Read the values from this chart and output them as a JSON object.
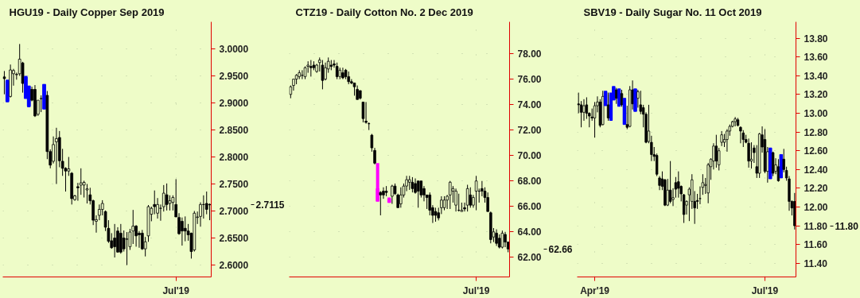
{
  "chart_data": [
    {
      "type": "candlestick",
      "title": "HGU19 - Daily Copper Sep 2019",
      "categories": [
        null,
        null,
        null,
        null,
        null,
        null,
        null,
        null,
        null,
        null,
        null,
        null,
        null,
        null,
        null,
        null,
        null,
        null,
        null,
        null,
        null,
        null,
        null,
        null,
        null,
        null,
        null,
        null,
        null,
        null,
        null,
        null,
        null,
        null,
        null,
        null,
        null,
        null,
        null,
        null,
        null,
        null,
        null,
        null,
        null,
        null,
        null,
        null,
        null,
        null,
        null,
        null,
        null,
        null,
        null,
        null,
        "Jul'19",
        null,
        null,
        null,
        null,
        null,
        null,
        null,
        null,
        null,
        null,
        null
      ],
      "ohlc": [
        [
          2.948,
          2.959,
          2.916,
          2.945
        ],
        [
          2.941,
          2.943,
          2.901,
          2.903
        ],
        [
          2.912,
          2.971,
          2.91,
          2.961
        ],
        [
          2.954,
          2.963,
          2.932,
          2.96
        ],
        [
          2.952,
          2.956,
          2.943,
          2.953
        ],
        [
          2.954,
          3.009,
          2.95,
          2.981
        ],
        [
          2.974,
          2.976,
          2.919,
          2.936
        ],
        [
          2.948,
          2.95,
          2.908,
          2.908
        ],
        [
          2.931,
          2.932,
          2.892,
          2.894
        ],
        [
          2.925,
          2.93,
          2.903,
          2.905
        ],
        [
          2.925,
          2.933,
          2.874,
          2.876
        ],
        [
          2.879,
          2.905,
          2.876,
          2.905
        ],
        [
          2.908,
          2.914,
          2.883,
          2.908
        ],
        [
          2.934,
          2.935,
          2.888,
          2.889
        ],
        [
          2.914,
          2.922,
          2.796,
          2.81
        ],
        [
          2.81,
          2.814,
          2.779,
          2.785
        ],
        [
          2.792,
          2.838,
          2.788,
          2.823
        ],
        [
          2.828,
          2.854,
          2.75,
          2.834
        ],
        [
          2.836,
          2.848,
          2.781,
          2.793
        ],
        [
          2.792,
          2.815,
          2.765,
          2.779
        ],
        [
          2.779,
          2.781,
          2.736,
          2.774
        ],
        [
          2.774,
          2.8,
          2.765,
          2.778
        ],
        [
          2.77,
          2.772,
          2.712,
          2.723
        ],
        [
          2.721,
          2.73,
          2.719,
          2.728
        ],
        [
          2.745,
          2.752,
          2.719,
          2.743
        ],
        [
          2.748,
          2.779,
          2.73,
          2.752
        ],
        [
          2.748,
          2.756,
          2.725,
          2.753
        ],
        [
          2.739,
          2.75,
          2.714,
          2.741
        ],
        [
          2.73,
          2.743,
          2.712,
          2.719
        ],
        [
          2.719,
          2.721,
          2.674,
          2.683
        ],
        [
          2.681,
          2.692,
          2.66,
          2.684
        ],
        [
          2.692,
          2.712,
          2.683,
          2.703
        ],
        [
          2.703,
          2.72,
          2.692,
          2.714
        ],
        [
          2.699,
          2.701,
          2.663,
          2.67
        ],
        [
          2.668,
          2.683,
          2.641,
          2.644
        ],
        [
          2.645,
          2.659,
          2.63,
          2.632
        ],
        [
          2.65,
          2.676,
          2.614,
          2.634
        ],
        [
          2.663,
          2.67,
          2.623,
          2.624
        ],
        [
          2.659,
          2.676,
          2.621,
          2.624
        ],
        [
          2.65,
          2.664,
          2.625,
          2.63
        ],
        [
          2.648,
          2.661,
          2.6,
          2.648
        ],
        [
          2.634,
          2.667,
          2.628,
          2.661
        ],
        [
          2.663,
          2.702,
          2.639,
          2.672
        ],
        [
          2.672,
          2.674,
          2.634,
          2.654
        ],
        [
          2.659,
          2.663,
          2.632,
          2.656
        ],
        [
          2.659,
          2.665,
          2.628,
          2.63
        ],
        [
          2.63,
          2.652,
          2.616,
          2.643
        ],
        [
          2.654,
          2.711,
          2.643,
          2.708
        ],
        [
          2.694,
          2.708,
          2.681,
          2.705
        ],
        [
          2.712,
          2.738,
          2.694,
          2.708
        ],
        [
          2.696,
          2.724,
          2.686,
          2.712
        ],
        [
          2.705,
          2.712,
          2.682,
          2.705
        ],
        [
          2.708,
          2.748,
          2.699,
          2.733
        ],
        [
          2.73,
          2.751,
          2.701,
          2.712
        ],
        [
          2.714,
          2.729,
          2.701,
          2.719
        ],
        [
          2.716,
          2.729,
          2.701,
          2.725
        ],
        [
          2.712,
          2.759,
          2.689,
          2.689
        ],
        [
          2.688,
          2.696,
          2.656,
          2.658
        ],
        [
          2.681,
          2.688,
          2.636,
          2.663
        ],
        [
          2.668,
          2.69,
          2.644,
          2.663
        ],
        [
          2.663,
          2.676,
          2.645,
          2.656
        ],
        [
          2.659,
          2.66,
          2.612,
          2.625
        ],
        [
          2.628,
          2.7,
          2.625,
          2.696
        ],
        [
          2.688,
          2.699,
          2.676,
          2.689
        ],
        [
          2.69,
          2.716,
          2.671,
          2.712
        ],
        [
          2.712,
          2.729,
          2.686,
          2.712
        ],
        [
          2.714,
          2.736,
          2.694,
          2.703
        ],
        [
          2.712,
          2.714,
          2.683,
          2.7115
        ]
      ],
      "colors": [
        "#000000",
        "#0000ff",
        "#000000",
        "#000000",
        "#000000",
        "#000000",
        "#000000",
        "#0000ff",
        "#0000ff",
        "#000000",
        "#000000",
        "#000000",
        "#000000",
        "#0000ff",
        "#000000",
        "#000000",
        "#000000",
        "#000000",
        "#000000",
        "#000000",
        "#000000",
        "#000000",
        "#000000",
        "#000000",
        "#000000",
        "#000000",
        "#000000",
        "#000000",
        "#000000",
        "#000000",
        "#000000",
        "#000000",
        "#000000",
        "#000000",
        "#000000",
        "#000000",
        "#000000",
        "#000000",
        "#000000",
        "#000000",
        "#000000",
        "#000000",
        "#000000",
        "#000000",
        "#000000",
        "#000000",
        "#000000",
        "#000000",
        "#000000",
        "#000000",
        "#000000",
        "#000000",
        "#000000",
        "#000000",
        "#000000",
        "#000000",
        "#000000",
        "#000000",
        "#000000",
        "#000000",
        "#000000",
        "#000000",
        "#000000",
        "#000000",
        "#000000",
        "#000000",
        "#000000",
        "#000000"
      ],
      "ylim": [
        2.578,
        3.05
      ],
      "yticks": [
        {
          "value": 2.6,
          "label": "2.6000"
        },
        {
          "value": 2.65,
          "label": "2.6500"
        },
        {
          "value": 2.7,
          "label": "2.7000"
        },
        {
          "value": 2.75,
          "label": "2.7500"
        },
        {
          "value": 2.8,
          "label": "2.8000"
        },
        {
          "value": 2.85,
          "label": "2.8500"
        },
        {
          "value": 2.9,
          "label": "2.9000"
        },
        {
          "value": 2.95,
          "label": "2.9500"
        },
        {
          "value": 3.0,
          "label": "3.0000"
        }
      ],
      "grid": true,
      "annotations": [
        "2.7115"
      ]
    },
    {
      "type": "candlestick",
      "title": "CTZ19 - Daily Cotton No. 2 Dec 2019",
      "categories": [
        null,
        null,
        null,
        null,
        null,
        null,
        null,
        null,
        null,
        null,
        null,
        null,
        null,
        null,
        null,
        null,
        null,
        null,
        null,
        null,
        null,
        null,
        null,
        null,
        null,
        null,
        null,
        null,
        null,
        null,
        null,
        null,
        null,
        null,
        null,
        null,
        null,
        null,
        null,
        null,
        null,
        null,
        null,
        null,
        null,
        null,
        null,
        null,
        null,
        null,
        null,
        null,
        null,
        null,
        null,
        null,
        null,
        null,
        null,
        null,
        null,
        null,
        null,
        null,
        "Jul'19",
        null,
        null,
        null,
        null,
        null,
        null,
        null,
        null,
        null,
        null,
        null
      ],
      "ohlc": [
        [
          74.8,
          75.5,
          74.5,
          75.4
        ],
        [
          75.5,
          76.0,
          75.1,
          76.0
        ],
        [
          76.0,
          76.4,
          75.6,
          76.3
        ],
        [
          76.2,
          76.7,
          76.0,
          76.5
        ],
        [
          76.3,
          76.7,
          76.0,
          76.3
        ],
        [
          76.2,
          77.0,
          76.0,
          76.9
        ],
        [
          77.0,
          77.4,
          76.5,
          77.1
        ],
        [
          77.0,
          77.5,
          76.2,
          76.9
        ],
        [
          77.1,
          77.4,
          76.7,
          76.9
        ],
        [
          76.6,
          77.2,
          76.5,
          77.1
        ],
        [
          77.3,
          77.7,
          76.6,
          77.5
        ],
        [
          77.1,
          77.5,
          75.2,
          75.9
        ],
        [
          76.0,
          77.3,
          75.9,
          76.9
        ],
        [
          76.8,
          77.7,
          76.5,
          77.4
        ],
        [
          77.1,
          77.5,
          76.7,
          77.0
        ],
        [
          77.2,
          77.5,
          76.9,
          77.1
        ],
        [
          77.0,
          77.3,
          76.0,
          76.2
        ],
        [
          76.2,
          76.9,
          76.0,
          76.7
        ],
        [
          76.5,
          76.9,
          76.0,
          76.1
        ],
        [
          76.7,
          76.8,
          76.0,
          76.2
        ],
        [
          76.2,
          76.6,
          75.6,
          75.8
        ],
        [
          75.8,
          76.0,
          75.6,
          75.7
        ],
        [
          75.7,
          75.7,
          74.7,
          75.4
        ],
        [
          75.2,
          75.5,
          74.4,
          74.4
        ],
        [
          75.1,
          75.1,
          74.4,
          74.5
        ],
        [
          74.2,
          74.2,
          72.6,
          72.9
        ],
        [
          72.7,
          74.2,
          72.5,
          72.6
        ],
        [
          72.5,
          72.6,
          72.0,
          72.5
        ],
        [
          71.6,
          71.7,
          70.3,
          70.6
        ],
        [
          70.4,
          70.6,
          69.3,
          69.4
        ],
        [
          67.4,
          69.4,
          66.4,
          66.4
        ],
        [
          67.1,
          67.2,
          65.3,
          66.9
        ],
        [
          67.2,
          67.5,
          66.6,
          66.9
        ],
        [
          67.2,
          67.6,
          66.8,
          67.1
        ],
        [
          66.6,
          66.7,
          66.3,
          66.3
        ],
        [
          66.8,
          67.7,
          66.2,
          67.6
        ],
        [
          67.6,
          67.8,
          66.9,
          67.0
        ],
        [
          66.9,
          67.0,
          65.9,
          65.9
        ],
        [
          66.2,
          67.5,
          65.9,
          66.9
        ],
        [
          66.9,
          67.8,
          66.7,
          67.6
        ],
        [
          67.6,
          68.4,
          67.2,
          68.1
        ],
        [
          67.9,
          68.4,
          67.3,
          68.1
        ],
        [
          67.9,
          68.3,
          67.1,
          67.4
        ],
        [
          67.8,
          68.2,
          67.0,
          67.1
        ],
        [
          68.0,
          68.0,
          65.9,
          67.2
        ],
        [
          68.0,
          68.0,
          66.7,
          66.9
        ],
        [
          67.4,
          67.6,
          66.4,
          66.9
        ],
        [
          66.9,
          66.9,
          65.8,
          66.7
        ],
        [
          66.9,
          67.1,
          65.3,
          65.7
        ],
        [
          65.9,
          66.1,
          64.7,
          65.3
        ],
        [
          65.6,
          65.9,
          64.8,
          65.3
        ],
        [
          65.5,
          65.9,
          64.9,
          65.1
        ],
        [
          65.9,
          66.8,
          65.4,
          66.5
        ],
        [
          65.9,
          66.8,
          65.7,
          66.5
        ],
        [
          66.5,
          66.9,
          65.8,
          66.8
        ],
        [
          66.9,
          68.0,
          65.8,
          67.9
        ],
        [
          67.2,
          67.6,
          66.3,
          67.4
        ],
        [
          66.1,
          67.4,
          65.6,
          67.2
        ],
        [
          65.7,
          67.0,
          65.6,
          65.7
        ],
        [
          65.6,
          66.3,
          65.6,
          65.7
        ],
        [
          65.9,
          66.3,
          65.6,
          65.8
        ],
        [
          66.1,
          67.7,
          65.6,
          67.4
        ],
        [
          66.9,
          67.5,
          65.9,
          66.1
        ],
        [
          66.1,
          66.9,
          65.9,
          66.7
        ],
        [
          67.2,
          68.4,
          65.7,
          68.0
        ],
        [
          67.2,
          67.4,
          66.3,
          67.2
        ],
        [
          67.4,
          68.0,
          66.8,
          67.2
        ],
        [
          67.2,
          67.5,
          66.3,
          66.7
        ],
        [
          66.7,
          67.1,
          65.6,
          65.6
        ],
        [
          65.5,
          65.6,
          63.1,
          63.4
        ],
        [
          63.6,
          64.3,
          63.2,
          64.0
        ],
        [
          63.9,
          64.2,
          62.9,
          63.1
        ],
        [
          63.5,
          63.8,
          62.7,
          62.8
        ],
        [
          62.8,
          64.1,
          62.7,
          63.9
        ],
        [
          63.8,
          64.0,
          62.8,
          63.2
        ],
        [
          63.2,
          63.2,
          62.4,
          62.66
        ]
      ],
      "colors": [
        "#000000",
        "#000000",
        "#000000",
        "#000000",
        "#000000",
        "#000000",
        "#000000",
        "#000000",
        "#000000",
        "#000000",
        "#000000",
        "#000000",
        "#000000",
        "#000000",
        "#000000",
        "#000000",
        "#000000",
        "#000000",
        "#000000",
        "#000000",
        "#000000",
        "#000000",
        "#000000",
        "#000000",
        "#000000",
        "#000000",
        "#000000",
        "#000000",
        "#000000",
        "#000000",
        "#ff00ff",
        "#000000",
        "#000000",
        "#000000",
        "#ff00ff",
        "#000000",
        "#000000",
        "#000000",
        "#000000",
        "#000000",
        "#000000",
        "#000000",
        "#000000",
        "#000000",
        "#000000",
        "#000000",
        "#000000",
        "#000000",
        "#000000",
        "#000000",
        "#000000",
        "#000000",
        "#000000",
        "#000000",
        "#000000",
        "#000000",
        "#000000",
        "#000000",
        "#000000",
        "#000000",
        "#000000",
        "#000000",
        "#000000",
        "#000000",
        "#000000",
        "#000000",
        "#000000",
        "#000000",
        "#000000",
        "#000000",
        "#000000",
        "#000000",
        "#000000",
        "#000000",
        "#000000",
        "#000000"
      ],
      "ylim": [
        60.46,
        80.5
      ],
      "yticks": [
        {
          "value": 62,
          "label": "62.00"
        },
        {
          "value": 64,
          "label": "64.00"
        },
        {
          "value": 66,
          "label": "66.00"
        },
        {
          "value": 68,
          "label": "68.00"
        },
        {
          "value": 70,
          "label": "70.00"
        },
        {
          "value": 72,
          "label": "72.00"
        },
        {
          "value": 74,
          "label": "74.00"
        },
        {
          "value": 76,
          "label": "76.00"
        },
        {
          "value": 78,
          "label": "78.00"
        }
      ],
      "grid": true,
      "annotations": [
        "62.66"
      ]
    },
    {
      "type": "candlestick",
      "title": "SBV19 - Daily Sugar No. 11 Oct 2019",
      "categories": [
        null,
        null,
        null,
        null,
        null,
        null,
        "Apr'19",
        null,
        null,
        null,
        null,
        null,
        null,
        null,
        null,
        null,
        null,
        null,
        null,
        null,
        null,
        null,
        null,
        null,
        null,
        null,
        null,
        null,
        null,
        null,
        null,
        null,
        null,
        null,
        null,
        null,
        null,
        null,
        null,
        null,
        null,
        null,
        null,
        null,
        null,
        null,
        null,
        null,
        null,
        null,
        null,
        null,
        null,
        null,
        null,
        null,
        null,
        null,
        null,
        null,
        null,
        null,
        null,
        null,
        null,
        null,
        null,
        null,
        null,
        "Jul'19",
        null,
        null,
        null,
        null,
        null,
        null,
        null,
        null,
        null,
        null,
        null
      ],
      "ohlc": [
        [
          13.1,
          13.22,
          13.0,
          13.09
        ],
        [
          13.09,
          13.13,
          12.85,
          13.01
        ],
        [
          13.01,
          13.15,
          12.92,
          13.08
        ],
        [
          13.09,
          13.17,
          12.94,
          13.0
        ],
        [
          13.0,
          13.01,
          12.85,
          12.97
        ],
        [
          12.96,
          13.05,
          12.92,
          12.95
        ],
        [
          12.95,
          13.12,
          12.74,
          13.08
        ],
        [
          13.08,
          13.18,
          13.01,
          13.12
        ],
        [
          13.12,
          13.15,
          12.85,
          12.87
        ],
        [
          12.88,
          13.24,
          12.87,
          13.18
        ],
        [
          13.23,
          13.24,
          13.08,
          13.08
        ],
        [
          13.09,
          13.22,
          12.92,
          12.95
        ],
        [
          13.2,
          13.22,
          12.92,
          12.93
        ],
        [
          13.28,
          13.29,
          13.14,
          13.14
        ],
        [
          13.25,
          13.27,
          13.1,
          13.16
        ],
        [
          13.26,
          13.26,
          13.07,
          13.08
        ],
        [
          13.21,
          13.25,
          13.07,
          13.09
        ],
        [
          13.16,
          13.16,
          12.88,
          12.88
        ],
        [
          12.88,
          13.08,
          12.83,
          12.85
        ],
        [
          12.86,
          13.29,
          12.85,
          13.25
        ],
        [
          13.25,
          13.35,
          13.04,
          13.1
        ],
        [
          13.26,
          13.26,
          13.02,
          13.02
        ],
        [
          13.16,
          13.25,
          13.06,
          13.23
        ],
        [
          13.09,
          13.24,
          12.99,
          13.02
        ],
        [
          13.06,
          13.09,
          12.85,
          12.99
        ],
        [
          12.99,
          13.01,
          12.68,
          12.69
        ],
        [
          12.7,
          13.09,
          12.68,
          12.81
        ],
        [
          12.69,
          12.76,
          12.49,
          12.56
        ],
        [
          12.56,
          12.64,
          12.49,
          12.54
        ],
        [
          12.55,
          12.57,
          12.33,
          12.35
        ],
        [
          12.31,
          12.33,
          12.18,
          12.23
        ],
        [
          12.3,
          12.38,
          12.18,
          12.22
        ],
        [
          12.29,
          12.3,
          12.01,
          12.02
        ],
        [
          12.02,
          12.3,
          12.01,
          12.18
        ],
        [
          12.18,
          12.49,
          12.04,
          12.06
        ],
        [
          12.08,
          12.2,
          12.01,
          12.1
        ],
        [
          12.26,
          12.32,
          12.1,
          12.19
        ],
        [
          12.27,
          12.38,
          12.1,
          12.2
        ],
        [
          12.22,
          12.23,
          12.06,
          12.14
        ],
        [
          12.13,
          12.14,
          11.83,
          11.92
        ],
        [
          12.02,
          12.07,
          11.92,
          12.06
        ],
        [
          12.13,
          12.21,
          11.85,
          12.19
        ],
        [
          12.06,
          12.35,
          11.98,
          12.29
        ],
        [
          12.06,
          12.17,
          11.82,
          11.99
        ],
        [
          12.07,
          12.14,
          11.98,
          12.06
        ],
        [
          12.09,
          12.22,
          12.03,
          12.09
        ],
        [
          12.21,
          12.35,
          12.13,
          12.26
        ],
        [
          12.23,
          12.31,
          12.14,
          12.24
        ],
        [
          12.15,
          12.47,
          12.04,
          12.45
        ],
        [
          12.43,
          12.52,
          12.29,
          12.51
        ],
        [
          12.49,
          12.68,
          12.4,
          12.65
        ],
        [
          12.65,
          12.77,
          12.42,
          12.49
        ],
        [
          12.45,
          12.63,
          12.39,
          12.6
        ],
        [
          12.69,
          12.81,
          12.65,
          12.77
        ],
        [
          12.69,
          12.78,
          12.64,
          12.72
        ],
        [
          12.72,
          12.83,
          12.59,
          12.81
        ],
        [
          12.81,
          12.88,
          12.76,
          12.86
        ],
        [
          12.86,
          12.92,
          12.85,
          12.91
        ],
        [
          12.91,
          12.96,
          12.86,
          12.94
        ],
        [
          12.93,
          12.95,
          12.86,
          12.87
        ],
        [
          12.85,
          12.86,
          12.68,
          12.81
        ],
        [
          12.79,
          12.82,
          12.64,
          12.72
        ],
        [
          12.72,
          12.77,
          12.68,
          12.69
        ],
        [
          12.68,
          12.73,
          12.42,
          12.49
        ],
        [
          12.49,
          12.69,
          12.41,
          12.51
        ],
        [
          12.63,
          12.66,
          12.47,
          12.58
        ],
        [
          12.43,
          12.66,
          12.31,
          12.36
        ],
        [
          12.36,
          12.79,
          12.31,
          12.78
        ],
        [
          12.77,
          12.86,
          12.58,
          12.64
        ],
        [
          12.72,
          12.83,
          12.36,
          12.38
        ],
        [
          12.38,
          12.64,
          12.26,
          12.59
        ],
        [
          12.63,
          12.63,
          12.3,
          12.3
        ],
        [
          12.58,
          12.59,
          12.33,
          12.36
        ],
        [
          12.38,
          12.52,
          12.35,
          12.45
        ],
        [
          12.43,
          12.51,
          12.27,
          12.28
        ],
        [
          12.56,
          12.56,
          12.31,
          12.31
        ],
        [
          12.51,
          12.62,
          12.37,
          12.4
        ],
        [
          12.39,
          12.43,
          12.28,
          12.31
        ],
        [
          12.3,
          12.33,
          11.96,
          12.06
        ],
        [
          12.06,
          12.07,
          11.91,
          11.99
        ],
        [
          12.06,
          12.15,
          11.76,
          11.8
        ]
      ],
      "colors": [
        "#000000",
        "#000000",
        "#000000",
        "#000000",
        "#000000",
        "#000000",
        "#000000",
        "#000000",
        "#000000",
        "#000000",
        "#0000ff",
        "#000000",
        "#0000ff",
        "#0000ff",
        "#000000",
        "#0000ff",
        "#000000",
        "#0000ff",
        "#000000",
        "#000000",
        "#000000",
        "#0000ff",
        "#000000",
        "#000000",
        "#000000",
        "#000000",
        "#000000",
        "#000000",
        "#000000",
        "#000000",
        "#000000",
        "#000000",
        "#000000",
        "#000000",
        "#000000",
        "#000000",
        "#000000",
        "#000000",
        "#000000",
        "#000000",
        "#000000",
        "#000000",
        "#000000",
        "#000000",
        "#000000",
        "#000000",
        "#000000",
        "#000000",
        "#000000",
        "#000000",
        "#000000",
        "#000000",
        "#000000",
        "#000000",
        "#000000",
        "#000000",
        "#000000",
        "#000000",
        "#000000",
        "#000000",
        "#000000",
        "#000000",
        "#000000",
        "#000000",
        "#000000",
        "#000000",
        "#000000",
        "#000000",
        "#000000",
        "#000000",
        "#000000",
        "#0000ff",
        "#000000",
        "#000000",
        "#000000",
        "#0000ff",
        "#000000",
        "#000000",
        "#000000",
        "#000000",
        "#000000"
      ],
      "ylim": [
        11.254,
        13.975
      ],
      "yticks": [
        {
          "value": 11.4,
          "label": "11.40"
        },
        {
          "value": 11.6,
          "label": "11.60"
        },
        {
          "value": 11.8,
          "label": "11.80"
        },
        {
          "value": 12.0,
          "label": "12.00"
        },
        {
          "value": 12.2,
          "label": "12.20"
        },
        {
          "value": 12.4,
          "label": "12.40"
        },
        {
          "value": 12.6,
          "label": "12.60"
        },
        {
          "value": 12.8,
          "label": "12.80"
        },
        {
          "value": 13.0,
          "label": "13.00"
        },
        {
          "value": 13.2,
          "label": "13.20"
        },
        {
          "value": 13.4,
          "label": "13.40"
        },
        {
          "value": 13.6,
          "label": "13.60"
        },
        {
          "value": 13.8,
          "label": "13.80"
        }
      ],
      "grid": true,
      "annotations": [
        "11.80"
      ]
    }
  ]
}
